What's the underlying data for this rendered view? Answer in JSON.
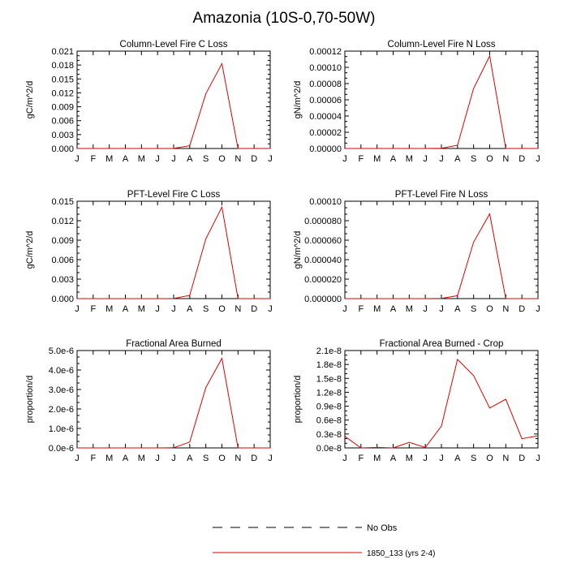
{
  "title": "Amazonia (10S-0,70-50W)",
  "months": [
    "J",
    "F",
    "M",
    "A",
    "M",
    "J",
    "J",
    "A",
    "S",
    "O",
    "N",
    "D",
    "J"
  ],
  "colors": {
    "series": "#e00000",
    "axis": "#000000"
  },
  "legend": {
    "no_obs": "No Obs",
    "series": "1850_133 (yrs 2-4)"
  },
  "chart_data": [
    {
      "type": "line",
      "title": "Column-Level Fire C Loss",
      "ylabel": "gC/m^2/d",
      "ylim": [
        0,
        0.021
      ],
      "yticks": [
        0,
        0.003,
        0.006,
        0.009,
        0.012,
        0.015,
        0.018,
        0.021
      ],
      "yticklabels": [
        "0.000",
        "0.003",
        "0.006",
        "0.009",
        "0.012",
        "0.015",
        "0.018",
        "0.021"
      ],
      "x": [
        0,
        1,
        2,
        3,
        4,
        5,
        6,
        7,
        8,
        9,
        10,
        11,
        12
      ],
      "series": [
        {
          "name": "1850_133 (yrs 2-4)",
          "values": [
            0,
            0,
            0,
            0,
            0,
            0,
            2e-05,
            0.0006,
            0.0118,
            0.0183,
            0,
            0,
            0
          ]
        }
      ]
    },
    {
      "type": "line",
      "title": "Column-Level Fire N Loss",
      "ylabel": "gN/m^2/d",
      "ylim": [
        0,
        0.00012
      ],
      "yticks": [
        0,
        2e-05,
        4e-05,
        6e-05,
        8e-05,
        0.0001,
        0.00012
      ],
      "yticklabels": [
        "0.00000",
        "0.00002",
        "0.00004",
        "0.00006",
        "0.00008",
        "0.00010",
        "0.00012"
      ],
      "x": [
        0,
        1,
        2,
        3,
        4,
        5,
        6,
        7,
        8,
        9,
        10,
        11,
        12
      ],
      "series": [
        {
          "name": "1850_133 (yrs 2-4)",
          "values": [
            0,
            0,
            0,
            0,
            0,
            0,
            2e-07,
            4e-06,
            7.4e-05,
            0.000114,
            0,
            0,
            0
          ]
        }
      ]
    },
    {
      "type": "line",
      "title": "PFT-Level Fire C Loss",
      "ylabel": "gC/m^2/d",
      "ylim": [
        0,
        0.015
      ],
      "yticks": [
        0,
        0.003,
        0.006,
        0.009,
        0.012,
        0.015
      ],
      "yticklabels": [
        "0.000",
        "0.003",
        "0.006",
        "0.009",
        "0.012",
        "0.015"
      ],
      "x": [
        0,
        1,
        2,
        3,
        4,
        5,
        6,
        7,
        8,
        9,
        10,
        11,
        12
      ],
      "series": [
        {
          "name": "1850_133 (yrs 2-4)",
          "values": [
            0,
            0,
            0,
            0,
            0,
            0,
            2e-05,
            0.0005,
            0.0092,
            0.0141,
            0,
            0,
            0
          ]
        }
      ]
    },
    {
      "type": "line",
      "title": "PFT-Level Fire N Loss",
      "ylabel": "gN/m^2/d",
      "ylim": [
        0,
        0.0001
      ],
      "yticks": [
        0,
        2e-05,
        4e-05,
        6e-05,
        8e-05,
        0.0001
      ],
      "yticklabels": [
        "0.000000",
        "0.000020",
        "0.000040",
        "0.000060",
        "0.000080",
        "0.00010"
      ],
      "x": [
        0,
        1,
        2,
        3,
        4,
        5,
        6,
        7,
        8,
        9,
        10,
        11,
        12
      ],
      "series": [
        {
          "name": "1850_133 (yrs 2-4)",
          "values": [
            0,
            0,
            0,
            0,
            0,
            0,
            2e-07,
            3e-06,
            5.8e-05,
            8.7e-05,
            0,
            0,
            0
          ]
        }
      ]
    },
    {
      "type": "line",
      "title": "Fractional Area Burned",
      "ylabel": "proportion/d",
      "ylim": [
        0,
        5e-06
      ],
      "yticks": [
        0,
        1e-06,
        2e-06,
        3e-06,
        4e-06,
        5e-06
      ],
      "yticklabels": [
        "0.0e-6",
        "1.0e-6",
        "2.0e-6",
        "3.0e-6",
        "4.0e-6",
        "5.0e-6"
      ],
      "x": [
        0,
        1,
        2,
        3,
        4,
        5,
        6,
        7,
        8,
        9,
        10,
        11,
        12
      ],
      "series": [
        {
          "name": "1850_133 (yrs 2-4)",
          "values": [
            0,
            0,
            0,
            0,
            0,
            0,
            8e-09,
            3e-07,
            3.1e-06,
            4.6e-06,
            0,
            0,
            0
          ]
        }
      ]
    },
    {
      "type": "line",
      "title": "Fractional Area Burned - Crop",
      "ylabel": "proportion/d",
      "ylim": [
        0,
        2.1e-08
      ],
      "yticks": [
        0,
        3e-09,
        6e-09,
        9e-09,
        1.2e-08,
        1.5e-08,
        1.8e-08,
        2.1e-08
      ],
      "yticklabels": [
        "0.0e-8",
        "0.3e-8",
        "0.6e-8",
        "0.9e-8",
        "1.2e-8",
        "1.5e-8",
        "1.8e-8",
        "2.1e-8"
      ],
      "x": [
        0,
        1,
        2,
        3,
        4,
        5,
        6,
        7,
        8,
        9,
        10,
        11,
        12
      ],
      "series": [
        {
          "name": "1850_133 (yrs 2-4)",
          "values": [
            2.5e-09,
            0,
            1e-10,
            0,
            1.2e-09,
            1e-10,
            4.7e-09,
            1.91e-08,
            1.56e-08,
            8.6e-09,
            1.05e-08,
            2e-09,
            2.6e-09
          ]
        }
      ]
    }
  ]
}
